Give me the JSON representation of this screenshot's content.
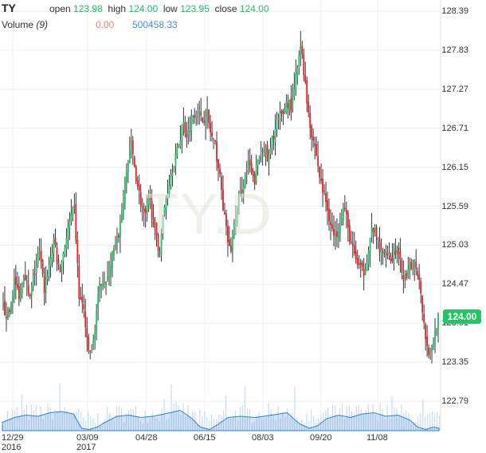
{
  "header": {
    "symbol": "TY",
    "open_label": "open",
    "open_value": "123.98",
    "high_label": "high",
    "high_value": "124.00",
    "low_label": "low",
    "low_value": "123.95",
    "close_label": "close",
    "close_value": "124.00",
    "volume_label": "Volume",
    "volume_period": "(9)",
    "volume_value": "0.00",
    "volume_ma_value": "500458.33"
  },
  "watermark": "TY.D",
  "colors": {
    "up": "#1ec06a",
    "down": "#ef1c24",
    "wick": "#222222",
    "volume_bar": "#c8dcf0",
    "volume_area": "#2e7fd4",
    "badge": "#27c467"
  },
  "chart_data": {
    "type": "candlestick",
    "title": "",
    "y_ticks": [
      "128.39",
      "127.83",
      "127.27",
      "126.71",
      "126.15",
      "125.59",
      "125.03",
      "124.47",
      "123.91",
      "123.35",
      "122.79"
    ],
    "x_ticks": [
      {
        "label": "12/29",
        "sub": "2016"
      },
      {
        "label": "03/09",
        "sub": "2017"
      },
      {
        "label": "04/28",
        "sub": ""
      },
      {
        "label": "06/15",
        "sub": ""
      },
      {
        "label": "08/03",
        "sub": ""
      },
      {
        "label": "09/20",
        "sub": ""
      },
      {
        "label": "11/08",
        "sub": ""
      }
    ],
    "ylim": [
      122.79,
      128.39
    ],
    "last_price": "124.00",
    "close_path": [
      [
        0,
        124.15
      ],
      [
        8,
        124.0
      ],
      [
        15,
        124.5
      ],
      [
        22,
        124.3
      ],
      [
        28,
        124.7
      ],
      [
        34,
        124.2
      ],
      [
        40,
        124.6
      ],
      [
        47,
        124.9
      ],
      [
        53,
        124.4
      ],
      [
        60,
        124.8
      ],
      [
        66,
        125.1
      ],
      [
        72,
        124.6
      ],
      [
        78,
        125.0
      ],
      [
        84,
        125.3
      ],
      [
        91,
        125.55
      ],
      [
        97,
        124.3
      ],
      [
        103,
        124.1
      ],
      [
        108,
        123.5
      ],
      [
        114,
        123.55
      ],
      [
        120,
        124.2
      ],
      [
        126,
        124.6
      ],
      [
        132,
        124.45
      ],
      [
        138,
        124.85
      ],
      [
        144,
        125.0
      ],
      [
        150,
        125.4
      ],
      [
        156,
        126.0
      ],
      [
        162,
        126.5
      ],
      [
        168,
        126.1
      ],
      [
        174,
        125.7
      ],
      [
        180,
        125.4
      ],
      [
        186,
        125.7
      ],
      [
        192,
        125.3
      ],
      [
        198,
        124.9
      ],
      [
        204,
        125.5
      ],
      [
        210,
        125.9
      ],
      [
        216,
        126.2
      ],
      [
        222,
        126.4
      ],
      [
        228,
        126.8
      ],
      [
        234,
        126.6
      ],
      [
        240,
        126.9
      ],
      [
        246,
        127.0
      ],
      [
        252,
        126.8
      ],
      [
        258,
        126.95
      ],
      [
        264,
        126.6
      ],
      [
        270,
        126.4
      ],
      [
        276,
        125.9
      ],
      [
        282,
        125.3
      ],
      [
        288,
        124.9
      ],
      [
        294,
        125.4
      ],
      [
        300,
        125.7
      ],
      [
        306,
        126.0
      ],
      [
        312,
        126.2
      ],
      [
        318,
        125.9
      ],
      [
        324,
        126.3
      ],
      [
        330,
        126.5
      ],
      [
        336,
        126.2
      ],
      [
        342,
        126.6
      ],
      [
        348,
        126.8
      ],
      [
        354,
        126.9
      ],
      [
        360,
        127.1
      ],
      [
        366,
        127.0
      ],
      [
        372,
        127.5
      ],
      [
        378,
        127.9
      ],
      [
        384,
        127.2
      ],
      [
        390,
        126.7
      ],
      [
        396,
        126.4
      ],
      [
        402,
        125.95
      ],
      [
        408,
        125.7
      ],
      [
        414,
        125.4
      ],
      [
        420,
        125.1
      ],
      [
        426,
        125.35
      ],
      [
        432,
        125.6
      ],
      [
        438,
        125.2
      ],
      [
        444,
        124.9
      ],
      [
        450,
        124.75
      ],
      [
        456,
        124.6
      ],
      [
        462,
        124.9
      ],
      [
        468,
        125.3
      ],
      [
        474,
        125.1
      ],
      [
        480,
        124.85
      ],
      [
        486,
        125.0
      ],
      [
        492,
        124.8
      ],
      [
        498,
        125.0
      ],
      [
        504,
        124.7
      ],
      [
        510,
        124.5
      ],
      [
        516,
        124.7
      ],
      [
        522,
        124.8
      ],
      [
        528,
        124.5
      ],
      [
        533,
        123.9
      ],
      [
        538,
        123.5
      ],
      [
        543,
        123.55
      ],
      [
        548,
        123.85
      ],
      [
        552,
        124.0
      ]
    ],
    "volume_area": [
      [
        0,
        0.35
      ],
      [
        15,
        0.55
      ],
      [
        30,
        0.65
      ],
      [
        45,
        0.6
      ],
      [
        60,
        0.75
      ],
      [
        75,
        0.8
      ],
      [
        90,
        0.7
      ],
      [
        100,
        0.1
      ],
      [
        110,
        0.05
      ],
      [
        120,
        0.15
      ],
      [
        130,
        0.35
      ],
      [
        145,
        0.6
      ],
      [
        160,
        0.65
      ],
      [
        175,
        0.55
      ],
      [
        190,
        0.6
      ],
      [
        205,
        0.7
      ],
      [
        225,
        0.85
      ],
      [
        240,
        0.5
      ],
      [
        250,
        0.15
      ],
      [
        262,
        0.05
      ],
      [
        272,
        0.25
      ],
      [
        285,
        0.55
      ],
      [
        300,
        0.6
      ],
      [
        320,
        0.55
      ],
      [
        340,
        0.65
      ],
      [
        360,
        0.75
      ],
      [
        375,
        0.3
      ],
      [
        388,
        0.1
      ],
      [
        398,
        0.2
      ],
      [
        410,
        0.5
      ],
      [
        425,
        0.65
      ],
      [
        440,
        0.55
      ],
      [
        455,
        0.7
      ],
      [
        470,
        0.75
      ],
      [
        485,
        0.6
      ],
      [
        500,
        0.65
      ],
      [
        515,
        0.45
      ],
      [
        525,
        0.15
      ],
      [
        535,
        0.05
      ],
      [
        545,
        0.15
      ],
      [
        552,
        0.1
      ]
    ]
  }
}
